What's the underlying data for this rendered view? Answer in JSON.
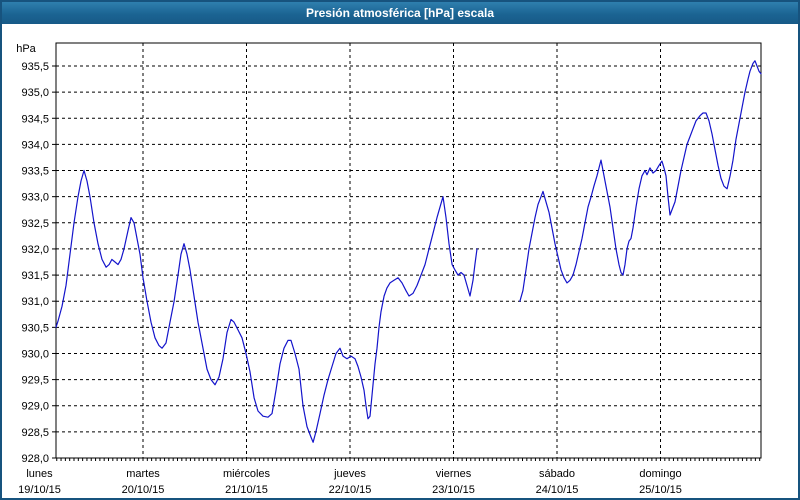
{
  "window": {
    "title": "Presión atmosférica [hPa] escala"
  },
  "chart_data": {
    "type": "line",
    "title": "Presión atmosférica [hPa] escala",
    "unit_label": "hPa",
    "ylabel": "hPa",
    "xlabel": "",
    "ylim": [
      928.0,
      935.5
    ],
    "y_step": 0.5,
    "grid": "dashed horizontal and vertical (day boundaries), hourly minor ticks on x axis",
    "legend": "none",
    "line_color": "#1414cb",
    "y_tick_labels": [
      "935,5",
      "935,0",
      "934,5",
      "934,0",
      "933,5",
      "933,0",
      "932,5",
      "932,0",
      "931,5",
      "931,0",
      "930,5",
      "930,0",
      "929,5",
      "929,0",
      "928,5",
      "928,0"
    ],
    "x_days": [
      {
        "label": "lunes",
        "date": "19/10/15"
      },
      {
        "label": "martes",
        "date": "20/10/15"
      },
      {
        "label": "miércoles",
        "date": "21/10/15"
      },
      {
        "label": "jueves",
        "date": "22/10/15"
      },
      {
        "label": "viernes",
        "date": "23/10/15"
      },
      {
        "label": "sábado",
        "date": "24/10/15"
      },
      {
        "label": "domingo",
        "date": "25/10/15"
      }
    ],
    "x_window_days": [
      0.159,
      6.972
    ],
    "series": [
      {
        "name": "presión atmosférica",
        "segments": [
          [
            [
              0.159,
              930.5
            ],
            [
              0.179,
              930.62
            ],
            [
              0.217,
              930.9
            ],
            [
              0.256,
              931.3
            ],
            [
              0.295,
              931.9
            ],
            [
              0.333,
              932.5
            ],
            [
              0.372,
              933.0
            ],
            [
              0.401,
              933.3
            ],
            [
              0.43,
              933.5
            ],
            [
              0.459,
              933.3
            ],
            [
              0.488,
              933.0
            ],
            [
              0.527,
              932.5
            ],
            [
              0.565,
              932.1
            ],
            [
              0.604,
              931.8
            ],
            [
              0.643,
              931.65
            ],
            [
              0.672,
              931.7
            ],
            [
              0.7,
              931.8
            ],
            [
              0.729,
              931.75
            ],
            [
              0.758,
              931.7
            ],
            [
              0.787,
              931.8
            ],
            [
              0.816,
              932.0
            ],
            [
              0.855,
              932.35
            ],
            [
              0.884,
              932.6
            ],
            [
              0.913,
              932.5
            ],
            [
              0.942,
              932.2
            ],
            [
              0.971,
              931.9
            ],
            [
              1.0,
              931.45
            ],
            [
              1.039,
              931.0
            ],
            [
              1.077,
              930.6
            ],
            [
              1.116,
              930.3
            ],
            [
              1.155,
              930.15
            ],
            [
              1.184,
              930.1
            ],
            [
              1.222,
              930.2
            ],
            [
              1.261,
              930.6
            ],
            [
              1.3,
              931.0
            ],
            [
              1.338,
              931.5
            ],
            [
              1.367,
              931.9
            ],
            [
              1.396,
              932.1
            ],
            [
              1.425,
              931.9
            ],
            [
              1.454,
              931.6
            ],
            [
              1.493,
              931.1
            ],
            [
              1.531,
              930.6
            ],
            [
              1.58,
              930.1
            ],
            [
              1.618,
              929.7
            ],
            [
              1.657,
              929.5
            ],
            [
              1.696,
              929.4
            ],
            [
              1.734,
              929.55
            ],
            [
              1.773,
              929.9
            ],
            [
              1.812,
              930.4
            ],
            [
              1.85,
              930.65
            ],
            [
              1.879,
              930.6
            ],
            [
              1.918,
              930.45
            ],
            [
              1.957,
              930.3
            ],
            [
              1.995,
              930.0
            ],
            [
              2.034,
              929.65
            ],
            [
              2.073,
              929.15
            ],
            [
              2.111,
              928.9
            ],
            [
              2.159,
              928.8
            ],
            [
              2.208,
              928.78
            ],
            [
              2.246,
              928.85
            ],
            [
              2.285,
              929.3
            ],
            [
              2.324,
              929.8
            ],
            [
              2.362,
              930.1
            ],
            [
              2.401,
              930.25
            ],
            [
              2.43,
              930.25
            ],
            [
              2.469,
              930.0
            ],
            [
              2.507,
              929.7
            ],
            [
              2.546,
              929.0
            ],
            [
              2.585,
              928.6
            ],
            [
              2.623,
              928.4
            ],
            [
              2.643,
              928.3
            ],
            [
              2.671,
              928.5
            ],
            [
              2.71,
              928.85
            ],
            [
              2.749,
              929.2
            ],
            [
              2.787,
              929.5
            ],
            [
              2.826,
              929.75
            ],
            [
              2.865,
              930.0
            ],
            [
              2.903,
              930.1
            ],
            [
              2.932,
              929.95
            ],
            [
              2.971,
              929.9
            ],
            [
              3.01,
              929.95
            ],
            [
              3.048,
              929.9
            ],
            [
              3.077,
              929.75
            ],
            [
              3.106,
              929.55
            ],
            [
              3.135,
              929.3
            ],
            [
              3.155,
              929.0
            ],
            [
              3.174,
              928.75
            ],
            [
              3.193,
              928.8
            ],
            [
              3.213,
              929.2
            ],
            [
              3.242,
              929.8
            ],
            [
              3.261,
              930.1
            ],
            [
              3.28,
              930.5
            ],
            [
              3.3,
              930.8
            ],
            [
              3.329,
              931.1
            ],
            [
              3.357,
              931.25
            ],
            [
              3.386,
              931.35
            ],
            [
              3.425,
              931.4
            ],
            [
              3.464,
              931.45
            ],
            [
              3.502,
              931.35
            ],
            [
              3.541,
              931.2
            ],
            [
              3.57,
              931.1
            ],
            [
              3.609,
              931.15
            ],
            [
              3.647,
              931.3
            ],
            [
              3.686,
              931.5
            ],
            [
              3.725,
              931.7
            ],
            [
              3.763,
              932.0
            ],
            [
              3.802,
              932.3
            ],
            [
              3.841,
              932.6
            ],
            [
              3.87,
              932.8
            ],
            [
              3.899,
              933.0
            ],
            [
              3.928,
              932.6
            ],
            [
              3.957,
              932.1
            ],
            [
              3.986,
              931.7
            ],
            [
              4.014,
              931.6
            ],
            [
              4.043,
              931.5
            ],
            [
              4.072,
              931.55
            ],
            [
              4.101,
              931.5
            ],
            [
              4.13,
              931.3
            ],
            [
              4.159,
              931.1
            ],
            [
              4.188,
              931.4
            ],
            [
              4.207,
              931.7
            ],
            [
              4.227,
              932.0
            ]
          ],
          [
            [
              4.642,
              931.0
            ],
            [
              4.671,
              931.2
            ],
            [
              4.7,
              931.6
            ],
            [
              4.729,
              932.0
            ],
            [
              4.758,
              932.3
            ],
            [
              4.787,
              932.6
            ],
            [
              4.816,
              932.85
            ],
            [
              4.845,
              933.0
            ],
            [
              4.865,
              933.1
            ],
            [
              4.894,
              932.9
            ],
            [
              4.923,
              932.7
            ],
            [
              4.952,
              932.4
            ],
            [
              4.981,
              932.1
            ],
            [
              5.01,
              931.85
            ],
            [
              5.039,
              931.6
            ],
            [
              5.068,
              931.45
            ],
            [
              5.097,
              931.35
            ],
            [
              5.126,
              931.4
            ],
            [
              5.155,
              931.5
            ],
            [
              5.184,
              931.7
            ],
            [
              5.213,
              931.95
            ],
            [
              5.242,
              932.2
            ],
            [
              5.271,
              932.5
            ],
            [
              5.3,
              932.8
            ],
            [
              5.329,
              933.0
            ],
            [
              5.357,
              933.2
            ],
            [
              5.386,
              933.4
            ],
            [
              5.406,
              933.55
            ],
            [
              5.425,
              933.7
            ],
            [
              5.444,
              933.5
            ],
            [
              5.464,
              933.3
            ],
            [
              5.483,
              933.1
            ],
            [
              5.512,
              932.8
            ],
            [
              5.541,
              932.4
            ],
            [
              5.57,
              932.0
            ],
            [
              5.599,
              931.7
            ],
            [
              5.618,
              931.55
            ],
            [
              5.638,
              931.5
            ],
            [
              5.657,
              931.7
            ],
            [
              5.676,
              932.0
            ],
            [
              5.696,
              932.15
            ],
            [
              5.715,
              932.2
            ],
            [
              5.734,
              932.4
            ],
            [
              5.763,
              932.8
            ],
            [
              5.792,
              933.15
            ],
            [
              5.821,
              933.4
            ],
            [
              5.85,
              933.5
            ],
            [
              5.87,
              933.42
            ],
            [
              5.899,
              933.55
            ],
            [
              5.928,
              933.45
            ],
            [
              5.957,
              933.5
            ],
            [
              5.986,
              933.6
            ],
            [
              6.014,
              933.68
            ],
            [
              6.034,
              933.55
            ],
            [
              6.053,
              933.4
            ],
            [
              6.072,
              933.0
            ],
            [
              6.092,
              932.65
            ],
            [
              6.121,
              932.8
            ],
            [
              6.14,
              932.9
            ],
            [
              6.169,
              933.2
            ],
            [
              6.198,
              933.5
            ],
            [
              6.227,
              933.75
            ],
            [
              6.256,
              934.0
            ],
            [
              6.285,
              934.15
            ],
            [
              6.314,
              934.3
            ],
            [
              6.343,
              934.45
            ],
            [
              6.382,
              934.55
            ],
            [
              6.411,
              934.6
            ],
            [
              6.44,
              934.6
            ],
            [
              6.469,
              934.45
            ],
            [
              6.498,
              934.2
            ],
            [
              6.527,
              933.9
            ],
            [
              6.556,
              933.6
            ],
            [
              6.585,
              933.35
            ],
            [
              6.614,
              933.2
            ],
            [
              6.643,
              933.15
            ],
            [
              6.672,
              933.4
            ],
            [
              6.7,
              933.7
            ],
            [
              6.729,
              934.1
            ],
            [
              6.758,
              934.4
            ],
            [
              6.787,
              934.7
            ],
            [
              6.816,
              935.0
            ],
            [
              6.845,
              935.25
            ],
            [
              6.865,
              935.4
            ],
            [
              6.894,
              935.55
            ],
            [
              6.913,
              935.6
            ],
            [
              6.932,
              935.5
            ],
            [
              6.952,
              935.4
            ],
            [
              6.971,
              935.35
            ]
          ]
        ]
      }
    ]
  }
}
